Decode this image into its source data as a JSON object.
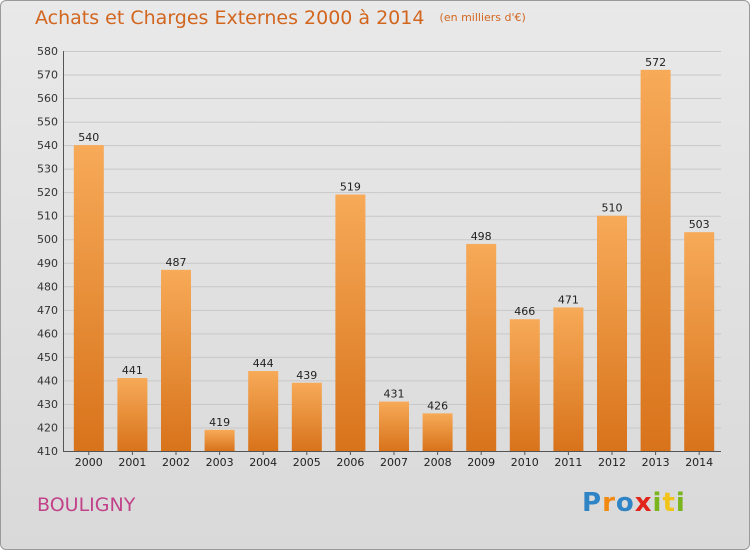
{
  "header": {
    "title": "Achats et Charges Externes 2000 à 2014",
    "units": "(en milliers d'€)"
  },
  "footer": {
    "commune": "BOULIGNY",
    "brand_letters": [
      {
        "ch": "P",
        "color": "#2f84c6"
      },
      {
        "ch": "r",
        "color": "#f28a12"
      },
      {
        "ch": "o",
        "color": "#2f84c6"
      },
      {
        "ch": "x",
        "color": "#e1251b"
      },
      {
        "ch": "i",
        "color": "#7ab51d"
      },
      {
        "ch": "t",
        "color": "#f2c318"
      },
      {
        "ch": "i",
        "color": "#7ab51d"
      }
    ]
  },
  "colors": {
    "bar_top": "#f7aa58",
    "bar_bottom": "#d8731b",
    "grid": "#c8c8c8",
    "title": "#d2661f",
    "commune": "#c2428a"
  },
  "chart_data": {
    "type": "bar",
    "title": "Achats et Charges Externes 2000 à 2014",
    "subtitle": "(en milliers d'€)",
    "xlabel": "",
    "ylabel": "",
    "categories": [
      "2000",
      "2001",
      "2002",
      "2003",
      "2004",
      "2005",
      "2006",
      "2007",
      "2008",
      "2009",
      "2010",
      "2011",
      "2012",
      "2013",
      "2014"
    ],
    "values": [
      540,
      441,
      487,
      419,
      444,
      439,
      519,
      431,
      426,
      498,
      466,
      471,
      510,
      572,
      503
    ],
    "ylim": [
      410,
      580
    ],
    "yticks": [
      410,
      420,
      430,
      440,
      450,
      460,
      470,
      480,
      490,
      500,
      510,
      520,
      530,
      540,
      550,
      560,
      570,
      580
    ],
    "grid": true,
    "legend": "none"
  }
}
